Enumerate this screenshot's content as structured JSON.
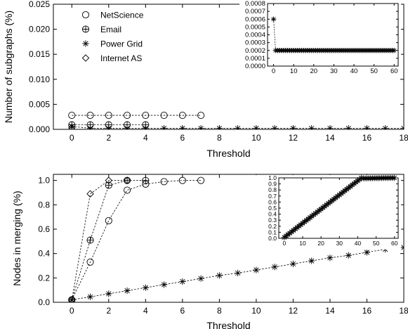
{
  "legend": {
    "placement": "top-left",
    "entries": [
      {
        "label": "NetScience",
        "marker": "circle-icon"
      },
      {
        "label": "Email",
        "marker": "circle-plus-icon"
      },
      {
        "label": "Power Grid",
        "marker": "asterisk-icon"
      },
      {
        "label": "Internet AS",
        "marker": "diamond-icon"
      }
    ]
  },
  "chart_data": [
    {
      "type": "line",
      "xlabel": "Threshold",
      "ylabel": "Number of subgraphs (%)",
      "xlim": [
        -1,
        18
      ],
      "ylim": [
        0,
        0.025
      ],
      "xticks": [
        "0",
        "2",
        "4",
        "6",
        "8",
        "10",
        "12",
        "14",
        "16",
        "18"
      ],
      "yticks": [
        "0.000",
        "0.005",
        "0.010",
        "0.015",
        "0.020",
        "0.025"
      ],
      "series": [
        {
          "name": "NetScience",
          "marker": "circle",
          "x": [
            0,
            1,
            2,
            3,
            4,
            5,
            6,
            7
          ],
          "y": [
            0.0028,
            0.0028,
            0.0028,
            0.0028,
            0.0028,
            0.0028,
            0.0028,
            0.0028
          ]
        },
        {
          "name": "Email",
          "marker": "circle-plus",
          "x": [
            0,
            1,
            2,
            3,
            4
          ],
          "y": [
            0.0009,
            0.0009,
            0.0009,
            0.0009,
            0.0009
          ]
        },
        {
          "name": "Power Grid",
          "marker": "asterisk",
          "x": [
            0,
            1,
            2,
            3,
            4,
            5,
            6,
            7,
            8,
            9,
            10,
            11,
            12,
            13,
            14,
            15,
            16,
            17,
            18
          ],
          "y": [
            0.0006,
            0.0002,
            0.0002,
            0.0002,
            0.0002,
            0.0002,
            0.0002,
            0.0002,
            0.0002,
            0.0002,
            0.0002,
            0.0002,
            0.0002,
            0.0002,
            0.0002,
            0.0002,
            0.0002,
            0.0002,
            0.0002
          ]
        },
        {
          "name": "Internet AS",
          "marker": "diamond",
          "x": [
            0
          ],
          "y": [
            0.0003
          ]
        }
      ],
      "inset": {
        "xlim": [
          -3,
          62
        ],
        "ylim": [
          0,
          0.0008
        ],
        "xticks": [
          "0",
          "10",
          "20",
          "30",
          "40",
          "50",
          "60"
        ],
        "yticks": [
          "0.0000",
          "0.0001",
          "0.0002",
          "0.0003",
          "0.0004",
          "0.0005",
          "0.0006",
          "0.0007",
          "0.0008"
        ],
        "series": {
          "name": "Power Grid",
          "marker": "asterisk",
          "x_start": 0,
          "x_end": 60,
          "first_y": 0.0006,
          "rest_y": 0.0002
        }
      }
    },
    {
      "type": "line",
      "xlabel": "Threshold",
      "ylabel": "Nodes in merging (%)",
      "xlim": [
        -1,
        18
      ],
      "ylim": [
        0,
        1.05
      ],
      "xticks": [
        "0",
        "2",
        "4",
        "6",
        "8",
        "10",
        "12",
        "14",
        "16",
        "18"
      ],
      "yticks": [
        "0.0",
        "0.2",
        "0.4",
        "0.6",
        "0.8",
        "1.0"
      ],
      "series": [
        {
          "name": "NetScience",
          "marker": "circle",
          "x": [
            0,
            1,
            2,
            3,
            4,
            5,
            6,
            7
          ],
          "y": [
            0.02,
            0.33,
            0.67,
            0.92,
            0.97,
            0.99,
            1.0,
            1.0
          ]
        },
        {
          "name": "Email",
          "marker": "circle-plus",
          "x": [
            0,
            1,
            2,
            3,
            4
          ],
          "y": [
            0.02,
            0.51,
            0.96,
            1.0,
            1.0
          ]
        },
        {
          "name": "Power Grid",
          "marker": "asterisk",
          "x": [
            0,
            1,
            2,
            3,
            4,
            5,
            6,
            7,
            8,
            9,
            10,
            11,
            12,
            13,
            14,
            15,
            16,
            17,
            18
          ],
          "y": [
            0.02,
            0.045,
            0.07,
            0.095,
            0.12,
            0.145,
            0.17,
            0.195,
            0.22,
            0.24,
            0.265,
            0.29,
            0.315,
            0.34,
            0.365,
            0.385,
            0.41,
            0.435,
            0.45
          ]
        },
        {
          "name": "Internet AS",
          "marker": "diamond",
          "x": [
            0,
            1,
            2,
            3
          ],
          "y": [
            0.02,
            0.89,
            1.0,
            1.0
          ]
        }
      ],
      "inset": {
        "xlim": [
          -3,
          62
        ],
        "ylim": [
          0,
          1.0
        ],
        "xticks": [
          "0",
          "10",
          "20",
          "30",
          "40",
          "50",
          "60"
        ],
        "yticks": [
          "0.0",
          "0.1",
          "0.2",
          "0.3",
          "0.4",
          "0.5",
          "0.6",
          "0.7",
          "0.8",
          "0.9",
          "1.0"
        ],
        "series": {
          "name": "Power Grid",
          "marker": "asterisk",
          "x_start": 0,
          "x_end": 60,
          "plateau_x": 42
        }
      }
    }
  ]
}
